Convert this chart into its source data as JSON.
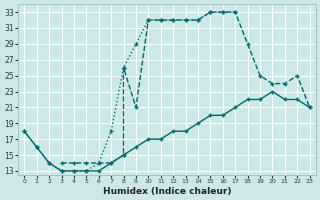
{
  "xlabel": "Humidex (Indice chaleur)",
  "bg_color": "#cce8e8",
  "grid_color": "#b8d8d8",
  "line_color": "#006868",
  "xlim": [
    -0.5,
    23.5
  ],
  "ylim": [
    12.5,
    34
  ],
  "xticks": [
    0,
    1,
    2,
    3,
    4,
    5,
    6,
    7,
    8,
    9,
    10,
    11,
    12,
    13,
    14,
    15,
    16,
    17,
    18,
    19,
    20,
    21,
    22,
    23
  ],
  "yticks": [
    13,
    15,
    17,
    19,
    21,
    23,
    25,
    27,
    29,
    31,
    33
  ],
  "curve_dotted_x": [
    0,
    1,
    2,
    3,
    4,
    5,
    6,
    7,
    8,
    9,
    10,
    11,
    12,
    13,
    14,
    15,
    16,
    17
  ],
  "curve_dotted_y": [
    18,
    16,
    14,
    13,
    13,
    13,
    14,
    18,
    26,
    29,
    32,
    32,
    32,
    32,
    32,
    33,
    33,
    33
  ],
  "curve_dashed_x": [
    3,
    4,
    5,
    6,
    7,
    8,
    8,
    9,
    10,
    11,
    12,
    13,
    14,
    15,
    16,
    17,
    18,
    19,
    20,
    21,
    22,
    23
  ],
  "curve_dashed_y": [
    14,
    14,
    14,
    14,
    14,
    15,
    26,
    21,
    32,
    32,
    32,
    32,
    32,
    33,
    33,
    33,
    29,
    25,
    24,
    24,
    25,
    21
  ],
  "curve_solid_x": [
    0,
    1,
    2,
    3,
    4,
    5,
    6,
    7,
    8,
    9,
    10,
    11,
    12,
    13,
    14,
    15,
    16,
    17,
    18,
    19,
    20,
    21,
    22,
    23
  ],
  "curve_solid_y": [
    18,
    16,
    14,
    13,
    13,
    13,
    13,
    14,
    15,
    16,
    17,
    17,
    18,
    18,
    19,
    20,
    20,
    21,
    22,
    22,
    23,
    22,
    22,
    21
  ]
}
